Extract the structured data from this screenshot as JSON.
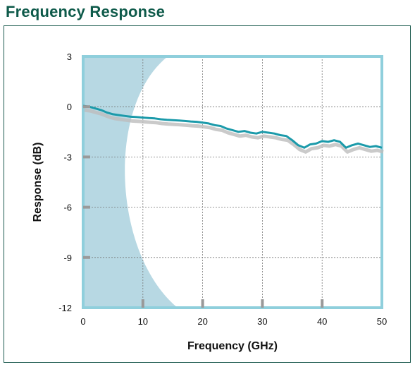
{
  "title": "Frequency Response",
  "chart_data": {
    "type": "line",
    "xlabel": "Frequency (GHz)",
    "ylabel": "Response (dB)",
    "xlim": [
      0,
      50
    ],
    "ylim": [
      -12,
      3
    ],
    "xticks": [
      "0",
      "10",
      "20",
      "30",
      "40",
      "50"
    ],
    "yticks": [
      "3",
      "0",
      "-3",
      "-6",
      "-9",
      "-12"
    ],
    "grid": true,
    "colors": {
      "line": "#1b9aaa",
      "shadow": "#bdbdbd",
      "shade": "#b7d8e3",
      "frame": "#8fcfdc"
    },
    "series": [
      {
        "x": [
          0,
          1,
          2,
          3,
          4,
          5,
          6,
          7,
          8,
          9,
          10,
          11,
          12,
          13,
          14,
          15,
          16,
          17,
          18,
          19,
          20,
          21,
          22,
          23,
          24,
          25,
          26,
          27,
          28,
          29,
          30,
          31,
          32,
          33,
          34,
          35,
          36,
          37,
          38,
          39,
          40,
          41,
          42,
          43,
          44,
          45,
          46,
          47,
          48,
          49,
          50
        ],
        "y": [
          0.05,
          0.0,
          -0.1,
          -0.2,
          -0.35,
          -0.45,
          -0.5,
          -0.55,
          -0.6,
          -0.62,
          -0.65,
          -0.68,
          -0.7,
          -0.75,
          -0.78,
          -0.8,
          -0.82,
          -0.85,
          -0.88,
          -0.9,
          -0.95,
          -1.0,
          -1.1,
          -1.15,
          -1.3,
          -1.4,
          -1.5,
          -1.45,
          -1.55,
          -1.6,
          -1.5,
          -1.55,
          -1.6,
          -1.7,
          -1.75,
          -2.0,
          -2.3,
          -2.45,
          -2.25,
          -2.2,
          -2.05,
          -2.1,
          -2.0,
          -2.1,
          -2.45,
          -2.3,
          -2.2,
          -2.3,
          -2.4,
          -2.35,
          -2.45
        ]
      }
    ]
  }
}
